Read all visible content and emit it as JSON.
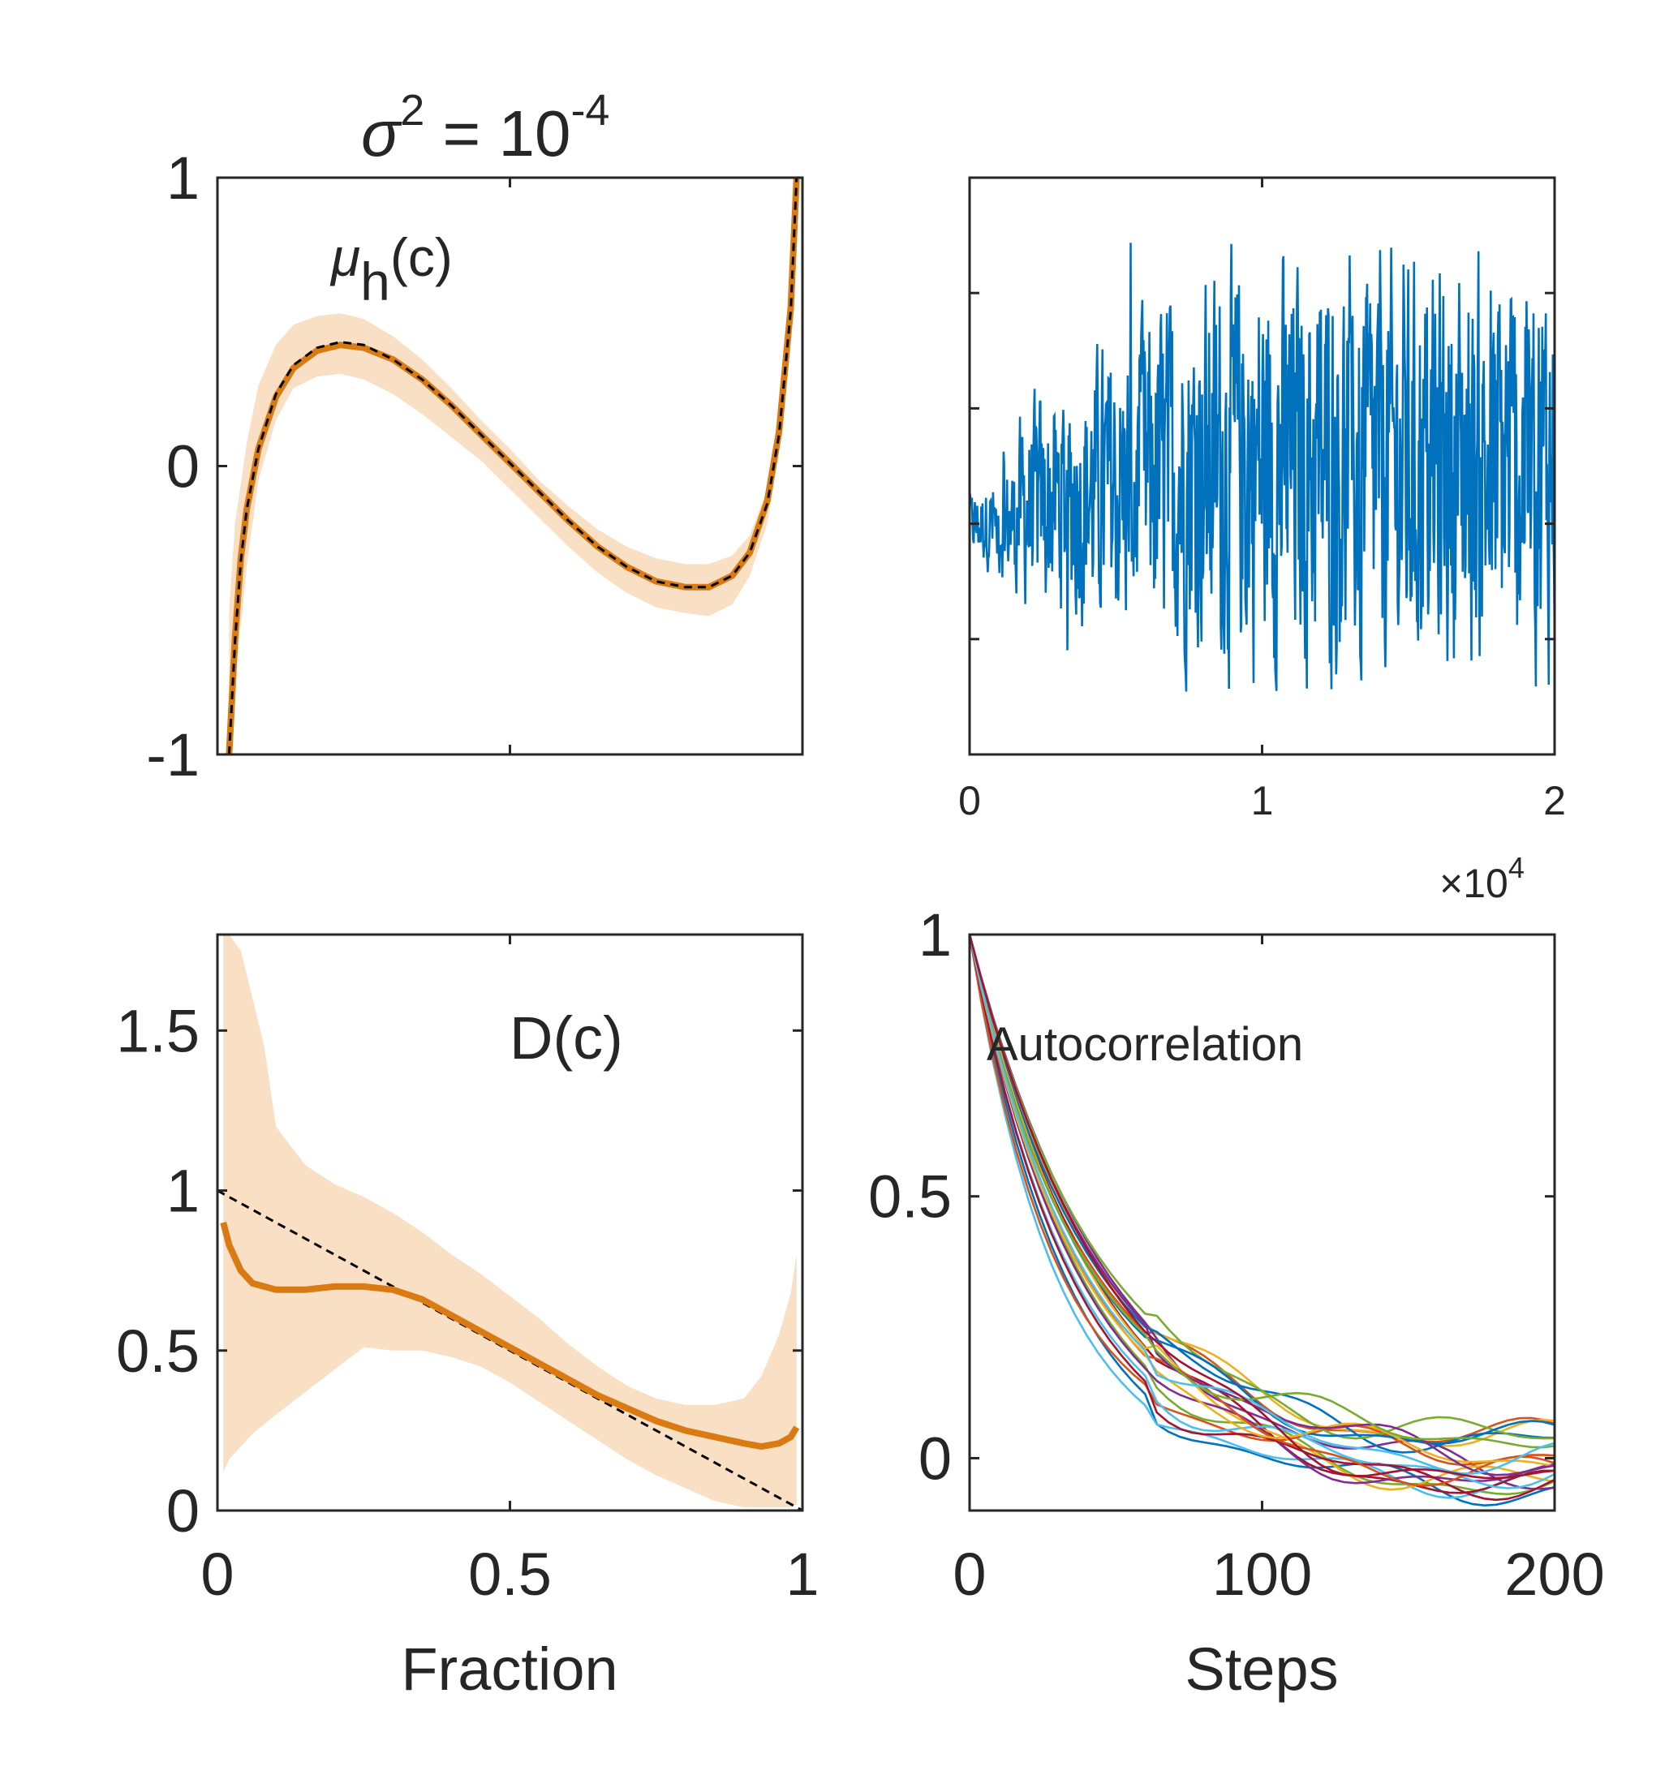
{
  "figure": {
    "title_base": "σ",
    "title_exp": "2",
    "title_rest": " = 10",
    "title_pow": "-4"
  },
  "chart_data": [
    {
      "id": "drift",
      "type": "line",
      "annotation": {
        "base": "μ",
        "sub": "h",
        "rest": "(c)"
      },
      "xlim": [
        0,
        1
      ],
      "ylim": [
        -1,
        1
      ],
      "yticks": [
        "1",
        "0",
        "-1"
      ],
      "yticks_values": [
        1,
        0,
        -1
      ],
      "xticks_values": [
        0,
        0.5,
        1
      ],
      "xtick_labels_shown": false,
      "series": [
        {
          "role": "band",
          "color": "#f9e0c4",
          "x": [
            0.02,
            0.03,
            0.05,
            0.07,
            0.1,
            0.13,
            0.17,
            0.21,
            0.25,
            0.3,
            0.35,
            0.4,
            0.45,
            0.5,
            0.55,
            0.6,
            0.65,
            0.7,
            0.75,
            0.8,
            0.84,
            0.88,
            0.91,
            0.94,
            0.96,
            0.98,
            0.99
          ],
          "upper": [
            -0.5,
            -0.2,
            0.08,
            0.28,
            0.42,
            0.49,
            0.52,
            0.53,
            0.51,
            0.45,
            0.37,
            0.27,
            0.16,
            0.06,
            -0.05,
            -0.14,
            -0.22,
            -0.28,
            -0.32,
            -0.34,
            -0.34,
            -0.31,
            -0.24,
            -0.08,
            0.15,
            0.6,
            1.0
          ],
          "lower": [
            -1.0,
            -0.75,
            -0.35,
            -0.05,
            0.16,
            0.27,
            0.31,
            0.32,
            0.3,
            0.25,
            0.18,
            0.1,
            0.02,
            -0.08,
            -0.18,
            -0.28,
            -0.37,
            -0.44,
            -0.49,
            -0.51,
            -0.52,
            -0.48,
            -0.38,
            -0.2,
            0.05,
            0.45,
            0.9
          ]
        },
        {
          "role": "estimate",
          "color": "#d97b12",
          "x": [
            0.02,
            0.03,
            0.04,
            0.05,
            0.07,
            0.1,
            0.13,
            0.17,
            0.21,
            0.25,
            0.3,
            0.35,
            0.4,
            0.45,
            0.5,
            0.55,
            0.6,
            0.65,
            0.7,
            0.75,
            0.8,
            0.84,
            0.88,
            0.91,
            0.94,
            0.96,
            0.98,
            0.99
          ],
          "y": [
            -1.0,
            -0.6,
            -0.32,
            -0.15,
            0.06,
            0.24,
            0.34,
            0.4,
            0.42,
            0.41,
            0.37,
            0.3,
            0.21,
            0.11,
            0.01,
            -0.09,
            -0.19,
            -0.28,
            -0.35,
            -0.4,
            -0.42,
            -0.42,
            -0.38,
            -0.3,
            -0.12,
            0.12,
            0.55,
            1.0
          ]
        },
        {
          "role": "true",
          "color": "#000000",
          "dashed": true,
          "x": [
            0.02,
            0.03,
            0.04,
            0.05,
            0.07,
            0.1,
            0.13,
            0.17,
            0.21,
            0.25,
            0.3,
            0.35,
            0.4,
            0.45,
            0.5,
            0.55,
            0.6,
            0.65,
            0.7,
            0.75,
            0.8,
            0.84,
            0.88,
            0.91,
            0.94,
            0.96,
            0.98,
            0.99
          ],
          "y": [
            -1.0,
            -0.61,
            -0.33,
            -0.15,
            0.06,
            0.25,
            0.35,
            0.41,
            0.43,
            0.42,
            0.37,
            0.3,
            0.21,
            0.11,
            0.01,
            -0.09,
            -0.19,
            -0.28,
            -0.35,
            -0.4,
            -0.42,
            -0.42,
            -0.38,
            -0.3,
            -0.13,
            0.11,
            0.54,
            1.0
          ]
        }
      ]
    },
    {
      "id": "trace",
      "type": "line",
      "xlim": [
        0,
        2
      ],
      "xticks": [
        "0",
        "1",
        "2"
      ],
      "xticks_values": [
        0,
        1,
        2
      ],
      "x_multiplier_base": "×10",
      "x_multiplier_exp": "4",
      "ylim": [
        -1,
        1
      ],
      "yticks_values": [
        -0.6,
        -0.2,
        0.2,
        0.6
      ],
      "ytick_labels_shown": false,
      "series": [
        {
          "role": "trace",
          "color": "#0072bd",
          "n_points": 1000
        }
      ]
    },
    {
      "id": "diffusion",
      "type": "line",
      "annotation": "D(c)",
      "xlabel": "Fraction",
      "xlim": [
        0,
        1
      ],
      "ylim": [
        0,
        1.8
      ],
      "xticks": [
        "0",
        "0.5",
        "1"
      ],
      "xticks_values": [
        0,
        0.5,
        1
      ],
      "yticks": [
        "0",
        "0.5",
        "1",
        "1.5"
      ],
      "yticks_values": [
        0,
        0.5,
        1,
        1.5
      ],
      "series": [
        {
          "role": "band",
          "color": "#f9e0c4",
          "x": [
            0.01,
            0.02,
            0.04,
            0.06,
            0.08,
            0.1,
            0.15,
            0.2,
            0.25,
            0.3,
            0.35,
            0.4,
            0.45,
            0.5,
            0.55,
            0.6,
            0.65,
            0.7,
            0.75,
            0.8,
            0.85,
            0.9,
            0.93,
            0.96,
            0.98,
            0.99
          ],
          "upper": [
            1.8,
            1.8,
            1.75,
            1.6,
            1.45,
            1.2,
            1.08,
            1.02,
            0.98,
            0.93,
            0.87,
            0.8,
            0.74,
            0.67,
            0.6,
            0.52,
            0.45,
            0.39,
            0.35,
            0.33,
            0.33,
            0.35,
            0.42,
            0.55,
            0.68,
            0.8
          ],
          "lower": [
            0.12,
            0.16,
            0.2,
            0.24,
            0.27,
            0.3,
            0.37,
            0.44,
            0.51,
            0.5,
            0.5,
            0.48,
            0.45,
            0.4,
            0.34,
            0.28,
            0.22,
            0.16,
            0.11,
            0.07,
            0.03,
            0.01,
            0.01,
            0.01,
            0.01,
            0.02
          ]
        },
        {
          "role": "estimate",
          "color": "#d97b12",
          "x": [
            0.01,
            0.02,
            0.04,
            0.06,
            0.08,
            0.1,
            0.15,
            0.2,
            0.25,
            0.3,
            0.35,
            0.4,
            0.45,
            0.5,
            0.55,
            0.6,
            0.65,
            0.7,
            0.75,
            0.8,
            0.85,
            0.9,
            0.93,
            0.96,
            0.98,
            0.99
          ],
          "y": [
            0.9,
            0.83,
            0.75,
            0.71,
            0.7,
            0.69,
            0.69,
            0.7,
            0.7,
            0.69,
            0.66,
            0.61,
            0.56,
            0.51,
            0.46,
            0.41,
            0.36,
            0.32,
            0.28,
            0.25,
            0.23,
            0.21,
            0.2,
            0.21,
            0.23,
            0.26
          ]
        },
        {
          "role": "true",
          "color": "#000000",
          "dashed": true,
          "x": [
            0,
            1
          ],
          "y": [
            1,
            0
          ]
        }
      ]
    },
    {
      "id": "autocorr",
      "type": "line",
      "annotation": "Autocorrelation",
      "xlabel": "Steps",
      "xlim": [
        0,
        200
      ],
      "ylim": [
        -0.1,
        1
      ],
      "xticks": [
        "0",
        "100",
        "200"
      ],
      "xticks_values": [
        0,
        100,
        200
      ],
      "yticks": [
        "0",
        "0.5",
        "1"
      ],
      "yticks_values": [
        0,
        0.5,
        1
      ],
      "colors": [
        "#0072bd",
        "#d95319",
        "#edb120",
        "#7e2f8e",
        "#77ac30",
        "#4dbeee",
        "#a2142f"
      ],
      "series_count": 21
    }
  ]
}
